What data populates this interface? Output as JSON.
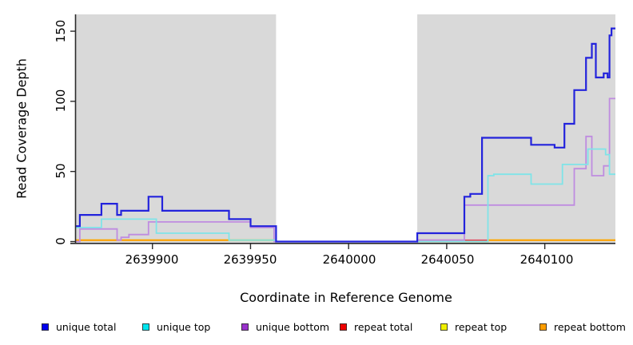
{
  "figure": {
    "y_axis_label": "Read Coverage Depth",
    "x_axis_label": "Coordinate in Reference Genome"
  },
  "legend": {
    "items": [
      {
        "label": "unique total",
        "color": "#0000ee"
      },
      {
        "label": "unique top",
        "color": "#00e5ee"
      },
      {
        "label": "unique bottom",
        "color": "#9932cc"
      },
      {
        "label": "repeat total",
        "color": "#ee0000"
      },
      {
        "label": "repeat top",
        "color": "#f0f000"
      },
      {
        "label": "repeat bottom",
        "color": "#ff9d00"
      }
    ]
  },
  "chart_data": {
    "type": "line",
    "subtype": "step",
    "title": "",
    "xlabel": "Coordinate in Reference Genome",
    "ylabel": "Read Coverage Depth",
    "xlim": [
      2639861,
      2640136
    ],
    "ylim": [
      0,
      162
    ],
    "x_ticks": [
      2639900,
      2639950,
      2640000,
      2640050,
      2640100
    ],
    "x_tick_labels": [
      "2639900",
      "2639950",
      "2640000",
      "2640050",
      "2640100"
    ],
    "y_ticks": [
      0,
      50,
      100,
      150
    ],
    "y_tick_labels": [
      "0",
      "50",
      "100",
      "150"
    ],
    "grid": false,
    "legend_position": "bottom",
    "panel_bg": "#d9d9d9",
    "gap_bg": "#ffffff",
    "axis_color": "#2a2a2a",
    "shaded_regions": [
      [
        2639861,
        2639963
      ],
      [
        2640035,
        2640136
      ]
    ],
    "gap_region": [
      2639963,
      2640035
    ],
    "draw_order": [
      4,
      5,
      3,
      2,
      1,
      0
    ],
    "series": [
      {
        "name": "unique total",
        "color": "#2323dc",
        "width": 2.2,
        "points": [
          [
            2639861,
            11
          ],
          [
            2639863,
            19
          ],
          [
            2639874,
            27
          ],
          [
            2639882,
            19
          ],
          [
            2639884,
            22
          ],
          [
            2639898,
            32
          ],
          [
            2639905,
            22
          ],
          [
            2639939,
            16
          ],
          [
            2639950,
            11
          ],
          [
            2639963,
            0
          ],
          [
            2640035,
            6
          ],
          [
            2640059,
            32
          ],
          [
            2640062,
            34
          ],
          [
            2640068,
            74
          ],
          [
            2640093,
            69
          ],
          [
            2640105,
            67
          ],
          [
            2640110,
            84
          ],
          [
            2640115,
            108
          ],
          [
            2640121,
            131
          ],
          [
            2640124,
            141
          ],
          [
            2640126,
            117
          ],
          [
            2640130,
            120
          ],
          [
            2640132,
            117
          ],
          [
            2640133,
            147
          ],
          [
            2640134,
            152
          ]
        ]
      },
      {
        "name": "unique top",
        "color": "#7fe4e8",
        "width": 1.8,
        "points": [
          [
            2639861,
            10
          ],
          [
            2639874,
            16
          ],
          [
            2639902,
            6
          ],
          [
            2639939,
            1
          ],
          [
            2639963,
            0
          ],
          [
            2640071,
            47
          ],
          [
            2640074,
            48
          ],
          [
            2640093,
            41
          ],
          [
            2640109,
            55
          ],
          [
            2640122,
            66
          ],
          [
            2640131,
            62
          ],
          [
            2640133,
            48
          ]
        ]
      },
      {
        "name": "unique bottom",
        "color": "#bf8ce0",
        "width": 1.8,
        "points": [
          [
            2639861,
            0
          ],
          [
            2639863,
            9
          ],
          [
            2639882,
            1
          ],
          [
            2639884,
            3
          ],
          [
            2639888,
            5
          ],
          [
            2639898,
            14
          ],
          [
            2639950,
            10
          ],
          [
            2639962,
            0
          ],
          [
            2640035,
            1
          ],
          [
            2640059,
            26
          ],
          [
            2640115,
            52
          ],
          [
            2640121,
            75
          ],
          [
            2640124,
            47
          ],
          [
            2640130,
            54
          ],
          [
            2640133,
            102
          ]
        ]
      },
      {
        "name": "repeat total",
        "color": "#e04b5f",
        "width": 1.6,
        "points": [
          [
            2640035,
            1
          ]
        ],
        "xend": 2640071
      },
      {
        "name": "repeat top",
        "color": "#f0f000",
        "width": 1.8,
        "points": [
          [
            2639861,
            1
          ],
          [
            2639963,
            0
          ],
          [
            2640071,
            1
          ]
        ]
      },
      {
        "name": "repeat bottom",
        "color": "#ff9d00",
        "width": 2.0,
        "points": [
          [
            2639861,
            1
          ],
          [
            2639963,
            0
          ],
          [
            2640071,
            1
          ]
        ]
      }
    ]
  }
}
